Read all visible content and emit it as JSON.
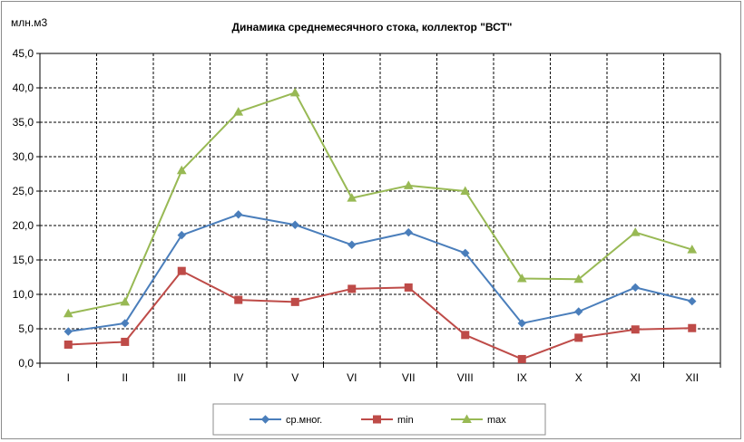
{
  "chart_data": {
    "type": "line",
    "title": "Динамика среднемесячного стока, коллектор \"ВСТ\"",
    "ylabel": "млн.м3",
    "xlabel": "",
    "categories": [
      "I",
      "II",
      "III",
      "IV",
      "V",
      "VI",
      "VII",
      "VIII",
      "IX",
      "X",
      "XI",
      "XII"
    ],
    "ylim": [
      0,
      45
    ],
    "ytick_step": 5,
    "ytick_labels": [
      "0,0",
      "5,0",
      "10,0",
      "15,0",
      "20,0",
      "25,0",
      "30,0",
      "35,0",
      "40,0",
      "45,0"
    ],
    "grid": true,
    "legend_position": "bottom",
    "series": [
      {
        "name": "ср.мног.",
        "color": "#4a7ebb",
        "marker": "diamond",
        "values": [
          4.6,
          5.8,
          18.6,
          21.6,
          20.1,
          17.2,
          19.0,
          16.0,
          5.8,
          7.5,
          11.0,
          9.0
        ]
      },
      {
        "name": "min",
        "color": "#be4b48",
        "marker": "square",
        "values": [
          2.7,
          3.1,
          13.4,
          9.2,
          8.9,
          10.8,
          11.0,
          4.1,
          0.6,
          3.7,
          4.9,
          5.1
        ]
      },
      {
        "name": "max",
        "color": "#98b954",
        "marker": "triangle",
        "values": [
          7.2,
          8.9,
          28.0,
          36.5,
          39.3,
          24.0,
          25.8,
          25.0,
          12.3,
          12.2,
          19.0,
          16.5
        ]
      }
    ]
  }
}
